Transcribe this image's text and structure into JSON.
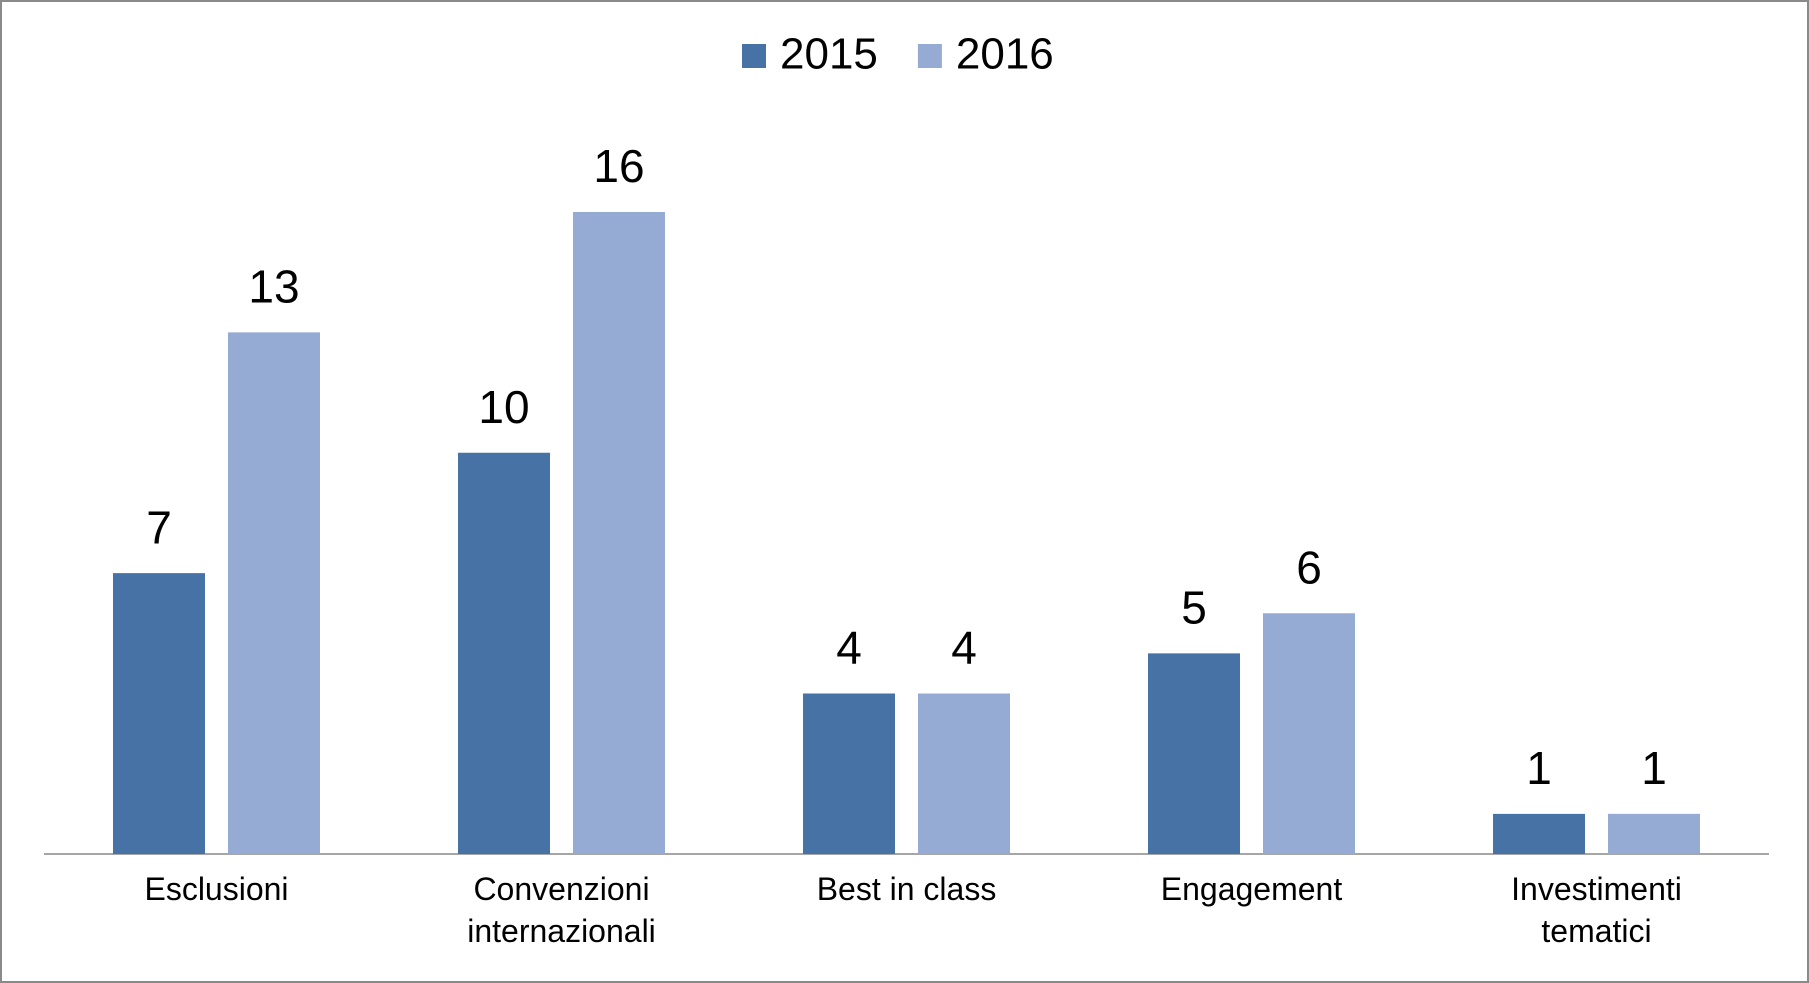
{
  "chart_data": {
    "type": "bar",
    "categories": [
      "Esclusioni",
      "Convenzioni internazionali",
      "Best in class",
      "Engagement",
      "Investimenti tematici"
    ],
    "series": [
      {
        "name": "2015",
        "color": "#4672a6",
        "values": [
          7,
          10,
          4,
          5,
          1
        ]
      },
      {
        "name": "2016",
        "color": "#95abd3",
        "values": [
          13,
          16,
          4,
          6,
          1
        ]
      }
    ]
  }
}
